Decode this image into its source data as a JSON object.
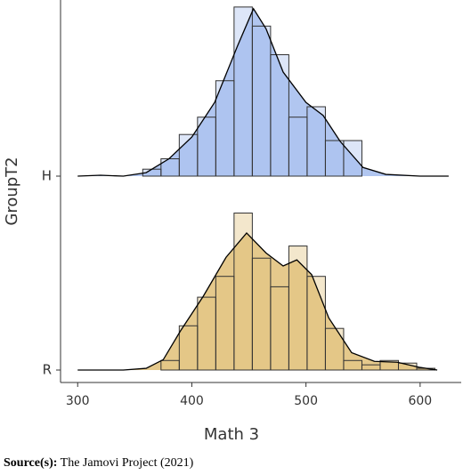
{
  "chart_data": {
    "type": "ridge-histogram",
    "xlabel": "Math 3",
    "ylabel": "GroupT2",
    "xlim": [
      285,
      636
    ],
    "xticks": [
      300,
      400,
      500,
      600
    ],
    "ylim": [
      0,
      200
    ],
    "series": [
      {
        "name": "H",
        "color": "#a9c0ee",
        "bins": [
          357,
          373,
          389,
          405,
          421,
          437,
          453,
          469,
          485,
          501,
          517,
          533,
          549,
          565
        ],
        "values": [
          8,
          20,
          48,
          68,
          110,
          195,
          173,
          140,
          68,
          80,
          41,
          41,
          0
        ],
        "density_x": [
          300,
          320,
          340,
          360,
          380,
          400,
          420,
          440,
          454,
          465,
          480,
          500,
          515,
          530,
          550,
          570,
          600,
          625
        ],
        "density": [
          0,
          1,
          0,
          4,
          20,
          45,
          85,
          150,
          193,
          170,
          120,
          85,
          70,
          40,
          10,
          2,
          0,
          0
        ]
      },
      {
        "name": "R",
        "color": "#e2c37f",
        "bins": [
          373,
          389,
          405,
          421,
          437,
          453,
          469,
          485,
          501,
          517,
          533,
          549,
          565,
          581,
          597,
          613
        ],
        "values": [
          11,
          51,
          84,
          108,
          181,
          129,
          96,
          143,
          108,
          48,
          11,
          6,
          11,
          8,
          2
        ],
        "density_x": [
          300,
          340,
          360,
          375,
          390,
          410,
          430,
          448,
          465,
          480,
          492,
          505,
          520,
          540,
          560,
          580,
          600,
          615
        ],
        "density": [
          0,
          0,
          2,
          12,
          45,
          85,
          130,
          158,
          135,
          120,
          127,
          110,
          60,
          20,
          10,
          9,
          3,
          0
        ]
      }
    ],
    "caption": {
      "label": "Source(s):",
      "text": "The Jamovi Project (2021)"
    }
  }
}
